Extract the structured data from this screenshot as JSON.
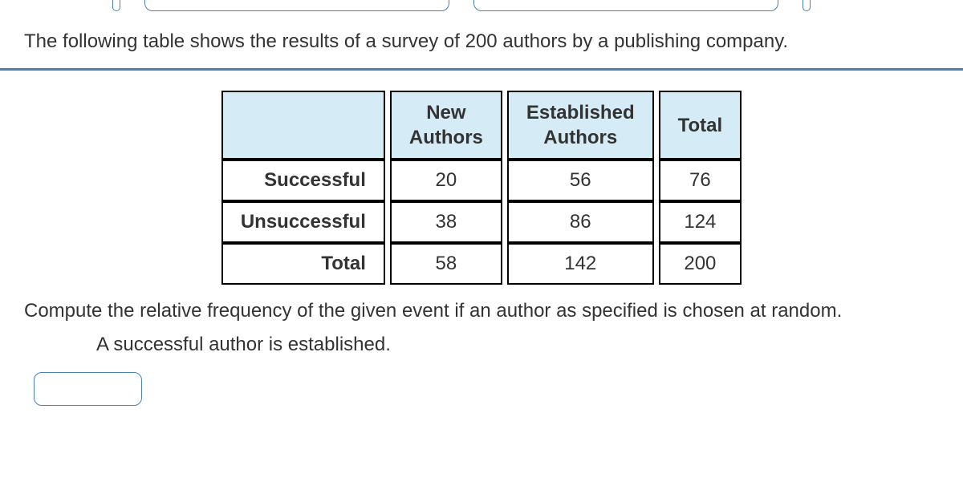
{
  "intro": "The following table shows the results of a survey of 200 authors by a publishing company.",
  "table": {
    "header_blank": "",
    "columns": [
      "New Authors",
      "Established Authors",
      "Total"
    ],
    "rows": [
      {
        "label": "Successful",
        "cells": [
          "20",
          "56",
          "76"
        ]
      },
      {
        "label": "Unsuccessful",
        "cells": [
          "38",
          "86",
          "124"
        ]
      },
      {
        "label": "Total",
        "cells": [
          "58",
          "142",
          "200"
        ]
      }
    ],
    "header_bg": "#d5ecf7",
    "border_color": "#000000",
    "cell_fontsize": 24
  },
  "question": "Compute the relative frequency of the given event if an author as specified is chosen at random.",
  "sub_question": "A successful author is established.",
  "answer_value": "",
  "accent_color": "#4682b4",
  "text_color": "#333333"
}
